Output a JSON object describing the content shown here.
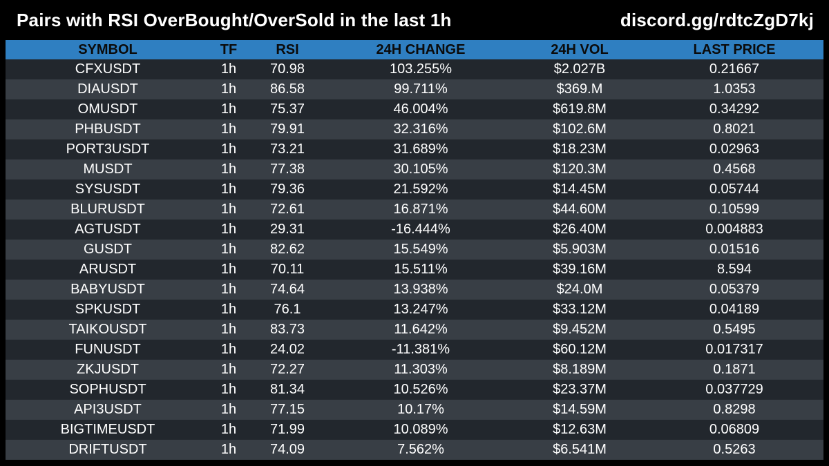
{
  "header": {
    "title": "Pairs with RSI OverBought/OverSold in the last 1h",
    "link": "discord.gg/rdtcZgD7kj"
  },
  "table": {
    "columns": [
      "SYMBOL",
      "TF",
      "RSI",
      "24H CHANGE",
      "24H VOL",
      "LAST PRICE"
    ],
    "rows": [
      [
        "CFXUSDT",
        "1h",
        "70.98",
        "103.255%",
        "$2.027B",
        "0.21667"
      ],
      [
        "DIAUSDT",
        "1h",
        "86.58",
        "99.711%",
        "$369.M",
        "1.0353"
      ],
      [
        "OMUSDT",
        "1h",
        "75.37",
        "46.004%",
        "$619.8M",
        "0.34292"
      ],
      [
        "PHBUSDT",
        "1h",
        "79.91",
        "32.316%",
        "$102.6M",
        "0.8021"
      ],
      [
        "PORT3USDT",
        "1h",
        "73.21",
        "31.689%",
        "$18.23M",
        "0.02963"
      ],
      [
        "MUSDT",
        "1h",
        "77.38",
        "30.105%",
        "$120.3M",
        "0.4568"
      ],
      [
        "SYSUSDT",
        "1h",
        "79.36",
        "21.592%",
        "$14.45M",
        "0.05744"
      ],
      [
        "BLURUSDT",
        "1h",
        "72.61",
        "16.871%",
        "$44.60M",
        "0.10599"
      ],
      [
        "AGTUSDT",
        "1h",
        "29.31",
        "-16.444%",
        "$26.40M",
        "0.004883"
      ],
      [
        "GUSDT",
        "1h",
        "82.62",
        "15.549%",
        "$5.903M",
        "0.01516"
      ],
      [
        "ARUSDT",
        "1h",
        "70.11",
        "15.511%",
        "$39.16M",
        "8.594"
      ],
      [
        "BABYUSDT",
        "1h",
        "74.64",
        "13.938%",
        "$24.0M",
        "0.05379"
      ],
      [
        "SPKUSDT",
        "1h",
        "76.1",
        "13.247%",
        "$33.12M",
        "0.04189"
      ],
      [
        "TAIKOUSDT",
        "1h",
        "83.73",
        "11.642%",
        "$9.452M",
        "0.5495"
      ],
      [
        "FUNUSDT",
        "1h",
        "24.02",
        "-11.381%",
        "$60.12M",
        "0.017317"
      ],
      [
        "ZKJUSDT",
        "1h",
        "72.27",
        "11.303%",
        "$8.189M",
        "0.1871"
      ],
      [
        "SOPHUSDT",
        "1h",
        "81.34",
        "10.526%",
        "$23.37M",
        "0.037729"
      ],
      [
        "API3USDT",
        "1h",
        "77.15",
        "10.17%",
        "$14.59M",
        "0.8298"
      ],
      [
        "BIGTIMEUSDT",
        "1h",
        "71.99",
        "10.089%",
        "$12.63M",
        "0.06809"
      ],
      [
        "DRIFTUSDT",
        "1h",
        "74.09",
        "7.562%",
        "$6.541M",
        "0.5263"
      ]
    ]
  },
  "colors": {
    "background": "#000000",
    "header_bg": "#2f7fc1",
    "row_dark": "#22272d",
    "row_light": "#383e45",
    "text": "#ffffff"
  }
}
